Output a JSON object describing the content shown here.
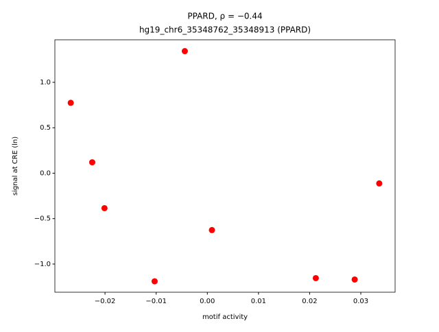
{
  "chart_data": {
    "type": "scatter",
    "title": "PPARD, ρ = −0.44",
    "subtitle": "hg19_chr6_35348762_35348913 (PPARD)",
    "x_label": "motif activity",
    "y_label": "signal at CRE (ln)",
    "color": "#ff0000",
    "series": [
      {
        "x": [
          -0.0267,
          -0.0225,
          -0.0201,
          -0.0103,
          -0.0044,
          0.0009,
          0.0212,
          0.0288,
          0.0336
        ],
        "values": [
          0.774,
          0.12,
          -0.385,
          -1.19,
          1.343,
          -0.626,
          -1.155,
          -1.17,
          -0.113
        ]
      }
    ],
    "xlim": [
      -0.0298,
      0.0367
    ],
    "ylim": [
      -1.31,
      1.468
    ],
    "xticks": [
      {
        "value": -0.02,
        "label": "−0.02"
      },
      {
        "value": -0.01,
        "label": "−0.01"
      },
      {
        "value": 0,
        "label": "0.00"
      },
      0.01,
      0.02,
      0.03
    ],
    "yticks": [
      {
        "value": -1,
        "label": "−1.0"
      },
      {
        "value": -0.5,
        "label": "−0.5"
      },
      {
        "value": 0,
        "label": "0.0"
      },
      0.5,
      {
        "value": 1,
        "label": "1.0"
      }
    ]
  }
}
